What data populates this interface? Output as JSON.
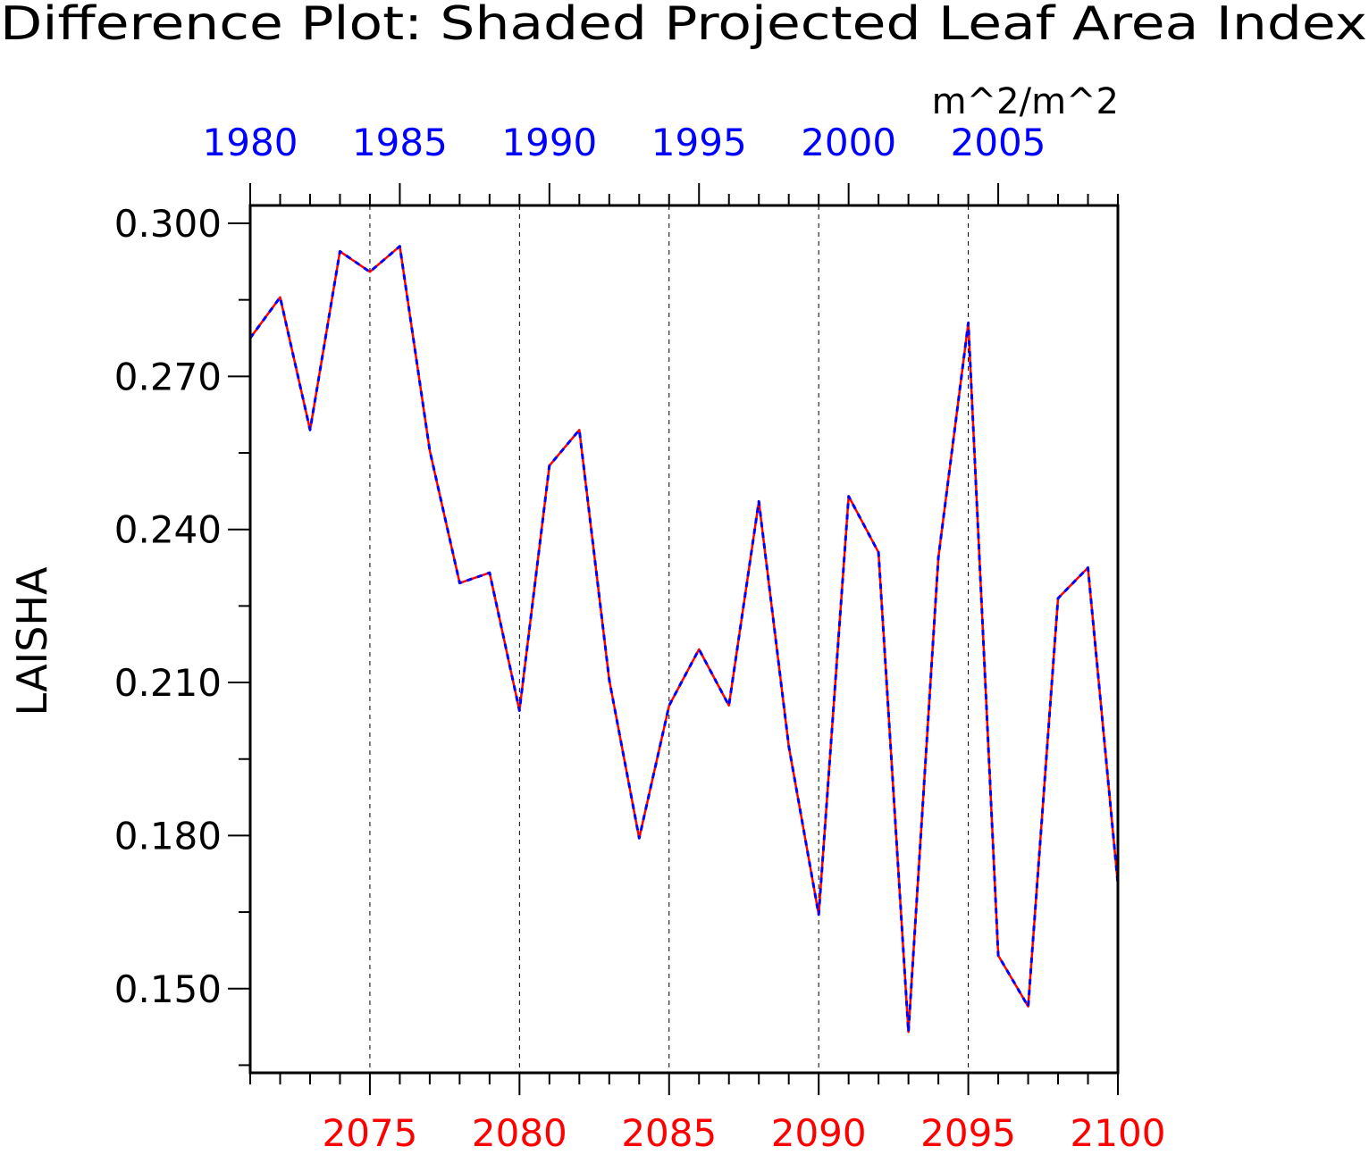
{
  "chart_data": {
    "type": "line",
    "title": "Difference Plot: Shaded Projected Leaf Area Index",
    "units": "m^2/m^2",
    "ylabel": "LAISHA",
    "xlabel": "",
    "ylim": [
      0.1335,
      0.3035
    ],
    "y_ticks": [
      0.15,
      0.18,
      0.21,
      0.24,
      0.27,
      0.3
    ],
    "y_tick_labels": [
      "0.150",
      "0.180",
      "0.210",
      "0.240",
      "0.270",
      "0.300"
    ],
    "grid": "vertical dashed at labeled bottom-axis years",
    "bottom_axis": {
      "color": "#ff0000",
      "xlim": [
        2071,
        2100
      ],
      "ticks": [
        2075,
        2080,
        2085,
        2090,
        2095,
        2100
      ],
      "tick_labels": [
        "2075",
        "2080",
        "2085",
        "2090",
        "2095",
        "2100"
      ]
    },
    "top_axis": {
      "color": "#0000ff",
      "xlim": [
        1980,
        2009
      ],
      "ticks": [
        1980,
        1985,
        1990,
        1995,
        2000,
        2005
      ],
      "tick_labels": [
        "1980",
        "1985",
        "1990",
        "1995",
        "2000",
        "2005"
      ]
    },
    "x": [
      2071,
      2072,
      2073,
      2074,
      2075,
      2076,
      2077,
      2078,
      2079,
      2080,
      2081,
      2082,
      2083,
      2084,
      2085,
      2086,
      2087,
      2088,
      2089,
      2090,
      2091,
      2092,
      2093,
      2094,
      2095,
      2096,
      2097,
      2098,
      2099,
      2100
    ],
    "series": [
      {
        "color": "#ff0000",
        "style": "solid",
        "values": [
          0.2775,
          0.2855,
          0.2595,
          0.2945,
          0.2905,
          0.2955,
          0.2555,
          0.2295,
          0.2315,
          0.2045,
          0.2525,
          0.2595,
          0.2105,
          0.1795,
          0.2055,
          0.2165,
          0.2055,
          0.2455,
          0.1975,
          0.1645,
          0.2465,
          0.2355,
          0.1415,
          0.2345,
          0.2805,
          0.1565,
          0.1465,
          0.2265,
          0.2325,
          0.1705
        ]
      },
      {
        "color": "#0000ff",
        "style": "dashed",
        "values": [
          0.2775,
          0.2855,
          0.2595,
          0.2945,
          0.2905,
          0.2955,
          0.2555,
          0.2295,
          0.2315,
          0.2045,
          0.2525,
          0.2595,
          0.2105,
          0.1795,
          0.2055,
          0.2165,
          0.2055,
          0.2455,
          0.1975,
          0.1645,
          0.2465,
          0.2355,
          0.1415,
          0.2345,
          0.2805,
          0.1565,
          0.1465,
          0.2265,
          0.2325,
          0.1705
        ]
      }
    ]
  }
}
